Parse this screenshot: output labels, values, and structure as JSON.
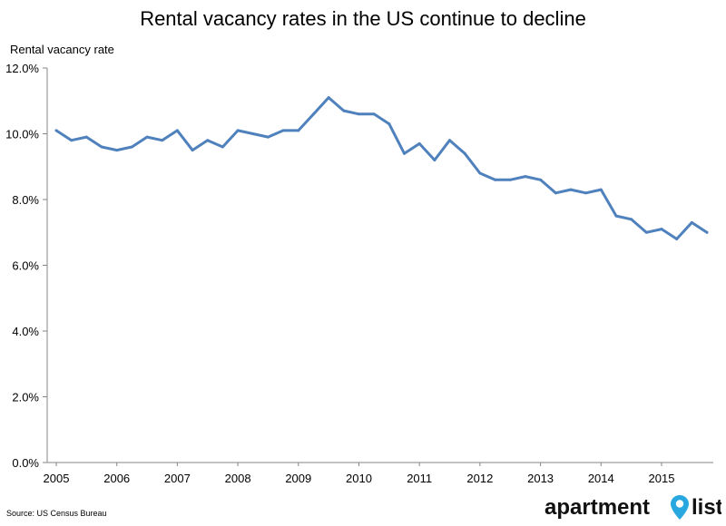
{
  "chart_data": {
    "type": "line",
    "title": "Rental vacancy rates in the US continue to decline",
    "ylabel": "Rental vacancy rate",
    "xlabel": "",
    "ylim": [
      0,
      12
    ],
    "yticks": [
      "0.0%",
      "2.0%",
      "4.0%",
      "6.0%",
      "8.0%",
      "10.0%",
      "12.0%"
    ],
    "ytick_values": [
      0,
      2,
      4,
      6,
      8,
      10,
      12
    ],
    "xticks": [
      "2005",
      "2006",
      "2007",
      "2008",
      "2009",
      "2010",
      "2011",
      "2012",
      "2013",
      "2014",
      "2015"
    ],
    "grid": false,
    "line_color": "#4f81bd",
    "series": [
      {
        "x": [
          "2005 Q1",
          "2005 Q2",
          "2005 Q3",
          "2005 Q4",
          "2006 Q1",
          "2006 Q2",
          "2006 Q3",
          "2006 Q4",
          "2007 Q1",
          "2007 Q2",
          "2007 Q3",
          "2007 Q4",
          "2008 Q1",
          "2008 Q2",
          "2008 Q3",
          "2008 Q4",
          "2009 Q1",
          "2009 Q2",
          "2009 Q3",
          "2009 Q4",
          "2010 Q1",
          "2010 Q2",
          "2010 Q3",
          "2010 Q4",
          "2011 Q1",
          "2011 Q2",
          "2011 Q3",
          "2011 Q4",
          "2012 Q1",
          "2012 Q2",
          "2012 Q3",
          "2012 Q4",
          "2013 Q1",
          "2013 Q2",
          "2013 Q3",
          "2013 Q4",
          "2014 Q1",
          "2014 Q2",
          "2014 Q3",
          "2014 Q4",
          "2015 Q1",
          "2015 Q2",
          "2015 Q3",
          "2015 Q4"
        ],
        "values": [
          10.1,
          9.8,
          9.9,
          9.6,
          9.5,
          9.6,
          9.9,
          9.8,
          10.1,
          9.5,
          9.8,
          9.6,
          10.1,
          10.0,
          9.9,
          10.1,
          10.1,
          10.6,
          11.1,
          10.7,
          10.6,
          10.6,
          10.3,
          9.4,
          9.7,
          9.2,
          9.8,
          9.4,
          8.8,
          8.6,
          8.6,
          8.7,
          8.6,
          8.2,
          8.3,
          8.2,
          8.3,
          7.5,
          7.4,
          7.0,
          7.1,
          6.8,
          7.3,
          7.0
        ]
      }
    ]
  },
  "footer": {
    "source": "Source: US Census Bureau",
    "logo_text_1": "apartment",
    "logo_text_2": "list"
  }
}
